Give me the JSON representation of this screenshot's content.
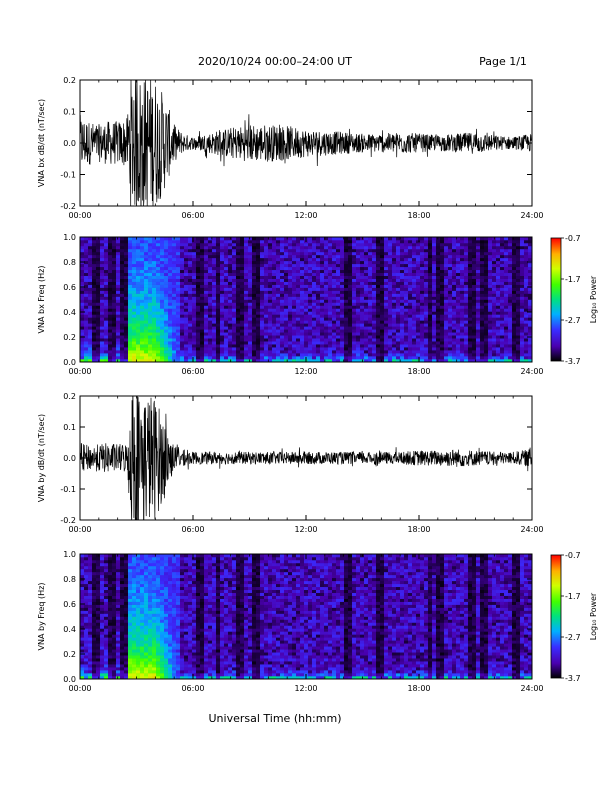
{
  "header": {
    "title": "2020/10/24  00:00–24:00 UT",
    "page": "Page 1/1"
  },
  "xlabel": "Universal Time (hh:mm)",
  "colorbar": {
    "label": "Log₁₀ Power",
    "ticks": [
      "-0.7",
      "-1.7",
      "-2.7",
      "-3.7"
    ]
  },
  "chart_data": [
    {
      "type": "line",
      "title": "",
      "ylabel": "VNA bx dB/dt (nT/sec)",
      "xlim": [
        0,
        24
      ],
      "ylim": [
        -0.2,
        0.2
      ],
      "x_tick_labels": [
        "00:00",
        "06:00",
        "12:00",
        "18:00",
        "24:00"
      ],
      "y_tick_labels": [
        "-0.2",
        "-0.1",
        "0.0",
        "0.1",
        "0.2"
      ],
      "envelope": {
        "x_hours": [
          0,
          0.5,
          1,
          1.5,
          2,
          2.5,
          2.7,
          3,
          3.5,
          4,
          4.5,
          5,
          5.5,
          6,
          7,
          8,
          9,
          10,
          11,
          12,
          13,
          14,
          15,
          16,
          17,
          18,
          19,
          20,
          21,
          22,
          23,
          24
        ],
        "amplitude": [
          0.09,
          0.07,
          0.06,
          0.07,
          0.07,
          0.08,
          0.22,
          0.22,
          0.22,
          0.21,
          0.15,
          0.06,
          0.03,
          0.02,
          0.035,
          0.05,
          0.06,
          0.06,
          0.055,
          0.045,
          0.04,
          0.035,
          0.03,
          0.03,
          0.035,
          0.03,
          0.025,
          0.03,
          0.035,
          0.025,
          0.02,
          0.03
        ]
      }
    },
    {
      "type": "heatmap",
      "title": "",
      "ylabel": "VNA bx Freq (Hz)",
      "xlim": [
        0,
        24
      ],
      "ylim": [
        0,
        1.0
      ],
      "x_tick_labels": [
        "00:00",
        "06:00",
        "12:00",
        "18:00",
        "24:00"
      ],
      "y_tick_labels": [
        "0.0",
        "0.2",
        "0.4",
        "0.6",
        "0.8",
        "1.0"
      ],
      "zlim": [
        -3.7,
        -0.7
      ],
      "zlabel": "Log₁₀ Power"
    },
    {
      "type": "line",
      "title": "",
      "ylabel": "VNA by dB/dt (nT/sec)",
      "xlim": [
        0,
        24
      ],
      "ylim": [
        -0.2,
        0.2
      ],
      "x_tick_labels": [
        "00:00",
        "06:00",
        "12:00",
        "18:00",
        "24:00"
      ],
      "y_tick_labels": [
        "-0.2",
        "-0.1",
        "0.0",
        "0.1",
        "0.2"
      ],
      "envelope": {
        "x_hours": [
          0,
          0.5,
          1,
          1.5,
          2,
          2.5,
          2.7,
          3,
          3.5,
          4,
          4.5,
          5,
          5.5,
          6,
          7,
          8,
          9,
          10,
          11,
          12,
          13,
          14,
          15,
          16,
          17,
          18,
          19,
          20,
          21,
          22,
          23,
          24
        ],
        "amplitude": [
          0.05,
          0.04,
          0.045,
          0.05,
          0.045,
          0.05,
          0.22,
          0.22,
          0.22,
          0.2,
          0.12,
          0.04,
          0.025,
          0.02,
          0.02,
          0.02,
          0.02,
          0.02,
          0.02,
          0.02,
          0.02,
          0.02,
          0.02,
          0.02,
          0.02,
          0.025,
          0.025,
          0.03,
          0.025,
          0.02,
          0.02,
          0.03
        ]
      }
    },
    {
      "type": "heatmap",
      "title": "",
      "ylabel": "VNA by Freq (Hz)",
      "xlim": [
        0,
        24
      ],
      "ylim": [
        0,
        1.0
      ],
      "x_tick_labels": [
        "00:00",
        "06:00",
        "12:00",
        "18:00",
        "24:00"
      ],
      "y_tick_labels": [
        "0.0",
        "0.2",
        "0.4",
        "0.6",
        "0.8",
        "1.0"
      ],
      "zlim": [
        -3.7,
        -0.7
      ],
      "zlabel": "Log₁₀ Power"
    }
  ]
}
